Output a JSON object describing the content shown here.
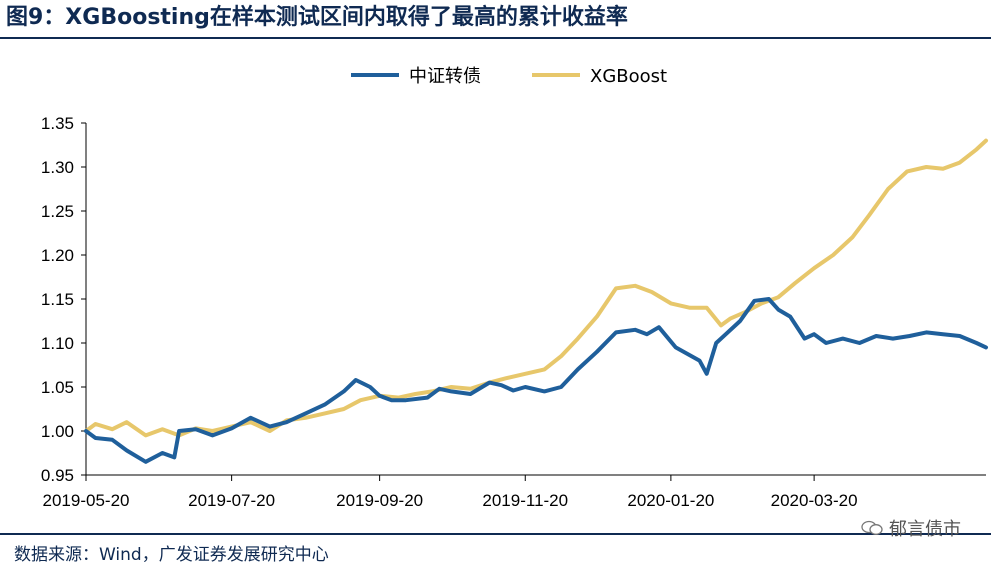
{
  "figure": {
    "title": "图9：XGBoosting在样本测试区间内取得了最高的累计收益率",
    "source": "数据来源：Wind，广发证券发展研究中心",
    "watermark": "郁言债市"
  },
  "chart_data": {
    "type": "line",
    "title": "",
    "xlabel": "",
    "ylabel": "",
    "ylim": [
      0.95,
      1.35
    ],
    "yticks": [
      "0.95",
      "1.00",
      "1.05",
      "1.10",
      "1.15",
      "1.20",
      "1.25",
      "1.30",
      "1.35"
    ],
    "xticks": [
      "2019-05-20",
      "2019-07-20",
      "2019-09-20",
      "2019-11-20",
      "2020-01-20",
      "2020-03-20"
    ],
    "xrange": [
      "2019-05-20",
      "2020-05-31"
    ],
    "grid": false,
    "legend_position": "top-center",
    "series": [
      {
        "name": "中证转债",
        "color": "#1f5f9b",
        "points": [
          [
            "2019-05-20",
            1.0
          ],
          [
            "2019-05-24",
            0.992
          ],
          [
            "2019-05-31",
            0.99
          ],
          [
            "2019-06-06",
            0.978
          ],
          [
            "2019-06-14",
            0.965
          ],
          [
            "2019-06-21",
            0.975
          ],
          [
            "2019-06-26",
            0.97
          ],
          [
            "2019-06-28",
            1.0
          ],
          [
            "2019-07-05",
            1.002
          ],
          [
            "2019-07-12",
            0.995
          ],
          [
            "2019-07-20",
            1.003
          ],
          [
            "2019-07-28",
            1.015
          ],
          [
            "2019-08-05",
            1.005
          ],
          [
            "2019-08-12",
            1.01
          ],
          [
            "2019-08-20",
            1.02
          ],
          [
            "2019-08-28",
            1.03
          ],
          [
            "2019-09-05",
            1.045
          ],
          [
            "2019-09-10",
            1.058
          ],
          [
            "2019-09-16",
            1.05
          ],
          [
            "2019-09-20",
            1.04
          ],
          [
            "2019-09-25",
            1.035
          ],
          [
            "2019-10-01",
            1.035
          ],
          [
            "2019-10-10",
            1.038
          ],
          [
            "2019-10-15",
            1.048
          ],
          [
            "2019-10-20",
            1.045
          ],
          [
            "2019-10-28",
            1.042
          ],
          [
            "2019-11-05",
            1.055
          ],
          [
            "2019-11-10",
            1.052
          ],
          [
            "2019-11-15",
            1.046
          ],
          [
            "2019-11-20",
            1.05
          ],
          [
            "2019-11-28",
            1.045
          ],
          [
            "2019-12-05",
            1.05
          ],
          [
            "2019-12-12",
            1.07
          ],
          [
            "2019-12-20",
            1.09
          ],
          [
            "2019-12-28",
            1.112
          ],
          [
            "2020-01-05",
            1.115
          ],
          [
            "2020-01-10",
            1.11
          ],
          [
            "2020-01-15",
            1.118
          ],
          [
            "2020-01-22",
            1.095
          ],
          [
            "2020-02-01",
            1.08
          ],
          [
            "2020-02-04",
            1.065
          ],
          [
            "2020-02-08",
            1.1
          ],
          [
            "2020-02-12",
            1.11
          ],
          [
            "2020-02-18",
            1.125
          ],
          [
            "2020-02-24",
            1.148
          ],
          [
            "2020-03-01",
            1.15
          ],
          [
            "2020-03-05",
            1.138
          ],
          [
            "2020-03-10",
            1.13
          ],
          [
            "2020-03-16",
            1.105
          ],
          [
            "2020-03-20",
            1.11
          ],
          [
            "2020-03-25",
            1.1
          ],
          [
            "2020-04-01",
            1.105
          ],
          [
            "2020-04-08",
            1.1
          ],
          [
            "2020-04-15",
            1.108
          ],
          [
            "2020-04-22",
            1.105
          ],
          [
            "2020-04-29",
            1.108
          ],
          [
            "2020-05-06",
            1.112
          ],
          [
            "2020-05-13",
            1.11
          ],
          [
            "2020-05-20",
            1.108
          ],
          [
            "2020-05-27",
            1.1
          ],
          [
            "2020-05-31",
            1.095
          ]
        ]
      },
      {
        "name": "XGBoost",
        "color": "#e7c76b",
        "points": [
          [
            "2019-05-20",
            1.0
          ],
          [
            "2019-05-24",
            1.008
          ],
          [
            "2019-05-31",
            1.002
          ],
          [
            "2019-06-06",
            1.01
          ],
          [
            "2019-06-14",
            0.995
          ],
          [
            "2019-06-21",
            1.002
          ],
          [
            "2019-06-28",
            0.995
          ],
          [
            "2019-07-05",
            1.003
          ],
          [
            "2019-07-12",
            1.0
          ],
          [
            "2019-07-20",
            1.005
          ],
          [
            "2019-07-28",
            1.01
          ],
          [
            "2019-08-05",
            1.0
          ],
          [
            "2019-08-12",
            1.012
          ],
          [
            "2019-08-20",
            1.015
          ],
          [
            "2019-08-28",
            1.02
          ],
          [
            "2019-09-05",
            1.025
          ],
          [
            "2019-09-12",
            1.035
          ],
          [
            "2019-09-20",
            1.04
          ],
          [
            "2019-09-28",
            1.038
          ],
          [
            "2019-10-05",
            1.042
          ],
          [
            "2019-10-12",
            1.045
          ],
          [
            "2019-10-20",
            1.05
          ],
          [
            "2019-10-28",
            1.048
          ],
          [
            "2019-11-05",
            1.055
          ],
          [
            "2019-11-12",
            1.06
          ],
          [
            "2019-11-20",
            1.065
          ],
          [
            "2019-11-28",
            1.07
          ],
          [
            "2019-12-05",
            1.085
          ],
          [
            "2019-12-12",
            1.105
          ],
          [
            "2019-12-20",
            1.13
          ],
          [
            "2019-12-28",
            1.162
          ],
          [
            "2020-01-05",
            1.165
          ],
          [
            "2020-01-12",
            1.158
          ],
          [
            "2020-01-20",
            1.145
          ],
          [
            "2020-01-28",
            1.14
          ],
          [
            "2020-02-04",
            1.14
          ],
          [
            "2020-02-10",
            1.12
          ],
          [
            "2020-02-14",
            1.128
          ],
          [
            "2020-02-20",
            1.135
          ],
          [
            "2020-02-27",
            1.145
          ],
          [
            "2020-03-05",
            1.152
          ],
          [
            "2020-03-12",
            1.168
          ],
          [
            "2020-03-20",
            1.185
          ],
          [
            "2020-03-28",
            1.2
          ],
          [
            "2020-04-05",
            1.22
          ],
          [
            "2020-04-12",
            1.245
          ],
          [
            "2020-04-20",
            1.275
          ],
          [
            "2020-04-28",
            1.295
          ],
          [
            "2020-05-06",
            1.3
          ],
          [
            "2020-05-13",
            1.298
          ],
          [
            "2020-05-20",
            1.305
          ],
          [
            "2020-05-27",
            1.32
          ],
          [
            "2020-05-31",
            1.33
          ]
        ]
      }
    ]
  }
}
